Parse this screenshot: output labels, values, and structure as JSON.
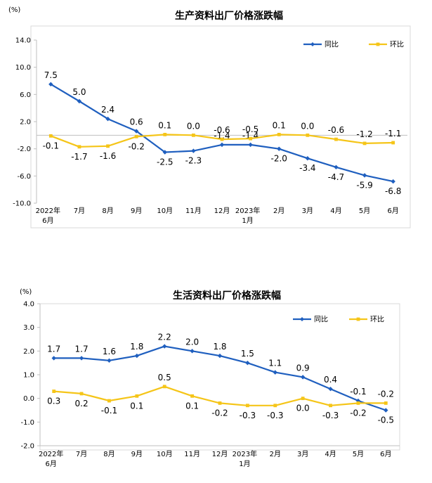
{
  "colors": {
    "yoy": "#1f5fbf",
    "mom": "#f5c518",
    "axis": "#bfbfbf",
    "frame": "#d9d9d9"
  },
  "chart_data": [
    {
      "type": "line",
      "title": "生产资料出厂价格涨跌幅",
      "ylabel": "(%)",
      "ylim": [
        -10.0,
        14.0
      ],
      "yticks": [
        "14.0",
        "10.0",
        "6.0",
        "2.0",
        "-2.0",
        "-6.0",
        "-10.0"
      ],
      "ytick_values": [
        14,
        10,
        6,
        2,
        -2,
        -6,
        -10
      ],
      "categories": [
        [
          "2022年",
          "6月"
        ],
        [
          "7月"
        ],
        [
          "8月"
        ],
        [
          "9月"
        ],
        [
          "10月"
        ],
        [
          "11月"
        ],
        [
          "12月"
        ],
        [
          "2023年",
          "1月"
        ],
        [
          "2月"
        ],
        [
          "3月"
        ],
        [
          "4月"
        ],
        [
          "5月"
        ],
        [
          "6月"
        ]
      ],
      "series": [
        {
          "name": "同比",
          "color_key": "yoy",
          "values": [
            7.5,
            5.0,
            2.4,
            0.6,
            -2.5,
            -2.3,
            -1.4,
            -1.4,
            -2.0,
            -3.4,
            -4.7,
            -5.9,
            -6.8
          ],
          "labels": [
            "7.5",
            "5.0",
            "2.4",
            "0.6",
            "-2.5",
            "-2.3",
            "-1.4",
            "-1.4",
            "-2.0",
            "-3.4",
            "-4.7",
            "-5.9",
            "-6.8"
          ]
        },
        {
          "name": "环比",
          "color_key": "mom",
          "values": [
            -0.1,
            -1.7,
            -1.6,
            -0.2,
            0.1,
            0.0,
            -0.6,
            -0.5,
            0.1,
            0.0,
            -0.6,
            -1.2,
            -1.1
          ],
          "labels": [
            "-0.1",
            "-1.7",
            "-1.6",
            "-0.2",
            "0.1",
            "0.0",
            "-0.6",
            "-0.5",
            "0.1",
            "0.0",
            "-0.6",
            "-1.2",
            "-1.1"
          ]
        }
      ]
    },
    {
      "type": "line",
      "title": "生活资料出厂价格涨跌幅",
      "ylabel": "(%)",
      "ylim": [
        -2.0,
        4.0
      ],
      "yticks": [
        "4.0",
        "3.0",
        "2.0",
        "1.0",
        "0.0",
        "-1.0",
        "-2.0"
      ],
      "ytick_values": [
        4,
        3,
        2,
        1,
        0,
        -1,
        -2
      ],
      "categories": [
        [
          "2022年",
          "6月"
        ],
        [
          "7月"
        ],
        [
          "8月"
        ],
        [
          "9月"
        ],
        [
          "10月"
        ],
        [
          "11月"
        ],
        [
          "12月"
        ],
        [
          "2023年",
          "1月"
        ],
        [
          "2月"
        ],
        [
          "3月"
        ],
        [
          "4月"
        ],
        [
          "5月"
        ],
        [
          "6月"
        ]
      ],
      "series": [
        {
          "name": "同比",
          "color_key": "yoy",
          "values": [
            1.7,
            1.7,
            1.6,
            1.8,
            2.2,
            2.0,
            1.8,
            1.5,
            1.1,
            0.9,
            0.4,
            -0.1,
            -0.5
          ],
          "labels": [
            "1.7",
            "1.7",
            "1.6",
            "1.8",
            "2.2",
            "2.0",
            "1.8",
            "1.5",
            "1.1",
            "0.9",
            "0.4",
            "-0.1",
            "-0.5"
          ]
        },
        {
          "name": "环比",
          "color_key": "mom",
          "values": [
            0.3,
            0.2,
            -0.1,
            0.1,
            0.5,
            0.1,
            -0.2,
            -0.3,
            -0.3,
            0.0,
            -0.3,
            -0.2,
            -0.2
          ],
          "labels": [
            "0.3",
            "0.2",
            "-0.1",
            "0.1",
            "0.5",
            "0.1",
            "-0.2",
            "-0.3",
            "-0.3",
            "0.0",
            "-0.3",
            "-0.2",
            "-0.2"
          ]
        }
      ]
    }
  ]
}
